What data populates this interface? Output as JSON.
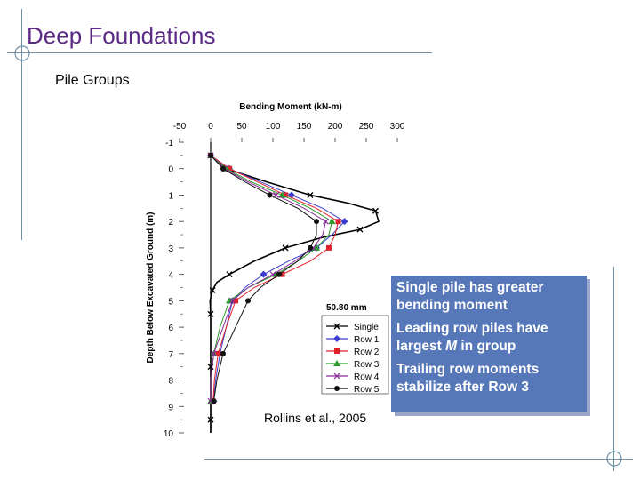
{
  "slide": {
    "title": "Deep Foundations",
    "subtitle": "Pile Groups",
    "citation": "Rollins et al., 2005"
  },
  "notes": [
    {
      "pre": "Single pile has greater bending moment",
      "em": "",
      "post": ""
    },
    {
      "pre": "Leading row  piles have largest ",
      "em": "M",
      "post": " in group"
    },
    {
      "pre": "Trailing row moments stabilize after Row 3",
      "em": "",
      "post": ""
    }
  ],
  "chart_data": {
    "type": "line",
    "title": "Bending Moment (kN-m)",
    "xlabel": "Bending Moment (kN-m)",
    "ylabel": "Depth Below Excavated Ground (m)",
    "xlim": [
      -50,
      300
    ],
    "ylim": [
      -1,
      10
    ],
    "x_ticks": [
      -50,
      0,
      50,
      100,
      150,
      200,
      250,
      300
    ],
    "y_ticks": [
      -1,
      0,
      1,
      2,
      3,
      4,
      5,
      6,
      7,
      8,
      9,
      10
    ],
    "y_inverted": true,
    "grid": false,
    "legend_position": "bottom-right",
    "legend_note": "50.80 mm",
    "series": [
      {
        "name": "Single",
        "color": "#000000",
        "marker": "x",
        "depth": [
          -0.5,
          0,
          0.5,
          1,
          1.3,
          1.6,
          2.0,
          2.3,
          2.6,
          3.0,
          3.5,
          4.0,
          4.3,
          4.6,
          5.0,
          5.5,
          6.5,
          7.5,
          8.5,
          9.5,
          10.0
        ],
        "moment": [
          0,
          25,
          90,
          160,
          220,
          265,
          270,
          240,
          180,
          120,
          70,
          30,
          10,
          3,
          -1,
          0,
          0,
          0,
          0,
          0,
          0
        ]
      },
      {
        "name": "Row 1",
        "color": "#3a3acc",
        "marker": "diamond",
        "depth": [
          -0.5,
          0,
          0.5,
          1,
          1.5,
          2.0,
          2.5,
          3.0,
          3.5,
          4.0,
          4.5,
          5.0,
          6.0,
          7.0,
          8.0,
          8.8
        ],
        "moment": [
          0,
          30,
          80,
          130,
          180,
          215,
          195,
          170,
          125,
          85,
          55,
          35,
          25,
          15,
          8,
          5
        ]
      },
      {
        "name": "Row 2",
        "color": "#e0202a",
        "marker": "square",
        "depth": [
          -0.5,
          0,
          0.5,
          1,
          1.5,
          2.0,
          2.5,
          3.0,
          3.5,
          4.0,
          4.5,
          5.0,
          6.0,
          7.0,
          8.0,
          8.8
        ],
        "moment": [
          0,
          30,
          75,
          120,
          170,
          205,
          200,
          190,
          160,
          115,
          70,
          40,
          25,
          12,
          6,
          4
        ]
      },
      {
        "name": "Row 3",
        "color": "#2a9a2a",
        "marker": "triangle",
        "depth": [
          -0.5,
          0,
          0.5,
          1,
          1.5,
          2.0,
          2.5,
          3.0,
          3.5,
          4.0,
          4.5,
          5.0,
          6.0,
          7.0,
          8.0,
          8.8
        ],
        "moment": [
          0,
          25,
          65,
          115,
          160,
          195,
          190,
          170,
          140,
          105,
          60,
          30,
          15,
          5,
          0,
          0
        ]
      },
      {
        "name": "Row 4",
        "color": "#8a2a9a",
        "marker": "cross",
        "depth": [
          -0.5,
          0,
          0.5,
          1,
          1.5,
          2.0,
          2.5,
          3.0,
          3.5,
          4.0,
          4.5,
          5.0,
          6.0,
          7.0,
          8.0,
          8.8
        ],
        "moment": [
          0,
          22,
          60,
          105,
          150,
          185,
          180,
          165,
          135,
          100,
          60,
          35,
          20,
          5,
          0,
          0
        ]
      },
      {
        "name": "Row 5",
        "color": "#111111",
        "marker": "circle",
        "depth": [
          -0.5,
          0,
          0.5,
          1,
          1.5,
          2.0,
          2.5,
          3.0,
          3.5,
          4.0,
          4.5,
          5.0,
          6.0,
          7.0,
          8.0,
          8.8
        ],
        "moment": [
          0,
          20,
          55,
          95,
          140,
          170,
          170,
          160,
          140,
          110,
          80,
          60,
          40,
          20,
          10,
          5
        ]
      }
    ]
  }
}
